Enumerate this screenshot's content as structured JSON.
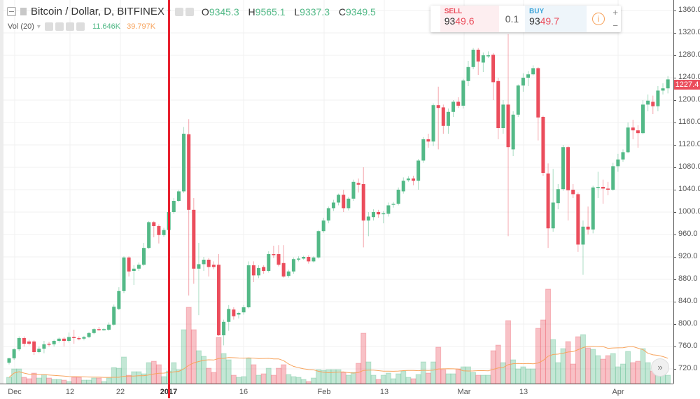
{
  "header": {
    "symbol_title": "Bitcoin / Dollar, D, BITFINEX",
    "ohlc": [
      {
        "label": "O",
        "value": "9345.3"
      },
      {
        "label": "H",
        "value": "9565.1"
      },
      {
        "label": "L",
        "value": "9337.3"
      },
      {
        "label": "C",
        "value": "9349.5"
      }
    ],
    "volume_indicator": {
      "label": "Vol (20)",
      "volume": "11.646K",
      "ma": "39.797K"
    }
  },
  "trade_widget": {
    "sell_label": "SELL",
    "sell_price_head": "93",
    "sell_price_tail": "49.6",
    "quantity": "0.1",
    "buy_label": "BUY",
    "buy_price_head": "93",
    "buy_price_tail": "49.7",
    "info_icon": "i",
    "plus": "+",
    "minus": "−"
  },
  "price_axis": {
    "ticks": [
      "1360.0",
      "1320.0",
      "1280.0",
      "1240.0",
      "1200.0",
      "1160.0",
      "1120.0",
      "1080.0",
      "1040.0",
      "1000.0",
      "960.0",
      "920.0",
      "880.0",
      "840.0",
      "800.0",
      "760.0",
      "720.0"
    ],
    "current_price": "1227.4"
  },
  "time_axis": {
    "labels": [
      "Dec",
      "12",
      "22",
      "2017",
      "16",
      "Feb",
      "13",
      "Mar",
      "13",
      "Apr"
    ]
  },
  "scroll_button": "»",
  "colors": {
    "up": "#53b987",
    "down": "#eb4d5c",
    "volume_ma": "#f7a35c",
    "marker_line": "#e8202e"
  },
  "chart_data": {
    "type": "candlestick",
    "interval": "D",
    "ylim": [
      700,
      1370
    ],
    "fields": [
      "open",
      "high",
      "low",
      "close"
    ],
    "candles": [
      [
        731,
        740,
        728,
        739
      ],
      [
        739,
        757,
        736,
        755
      ],
      [
        755,
        778,
        752,
        775
      ],
      [
        775,
        778,
        760,
        765
      ],
      [
        769,
        772,
        762,
        765
      ],
      [
        769,
        771,
        745,
        750
      ],
      [
        750,
        760,
        748,
        756
      ],
      [
        756,
        770,
        748,
        764
      ],
      [
        765,
        768,
        760,
        764
      ],
      [
        764,
        772,
        760,
        770
      ],
      [
        770,
        776,
        767,
        774
      ],
      [
        774,
        777,
        760,
        770
      ],
      [
        770,
        785,
        767,
        777
      ],
      [
        777,
        790,
        765,
        775
      ],
      [
        775,
        778,
        771,
        774
      ],
      [
        774,
        779,
        771,
        777
      ],
      [
        777,
        786,
        775,
        784
      ],
      [
        784,
        793,
        782,
        791
      ],
      [
        791,
        795,
        788,
        790
      ],
      [
        790,
        793,
        788,
        791
      ],
      [
        790,
        803,
        788,
        799
      ],
      [
        799,
        835,
        797,
        831
      ],
      [
        827,
        866,
        825,
        859
      ],
      [
        859,
        921,
        855,
        919
      ],
      [
        919,
        921,
        885,
        894
      ],
      [
        895,
        905,
        870,
        899
      ],
      [
        899,
        910,
        895,
        906
      ],
      [
        906,
        945,
        904,
        936
      ],
      [
        936,
        984,
        934,
        982
      ],
      [
        982,
        984,
        955,
        975
      ],
      [
        975,
        978,
        944,
        959
      ],
      [
        959,
        972,
        956,
        968
      ],
      [
        968,
        1005,
        966,
        1000
      ],
      [
        1000,
        1025,
        997,
        1020
      ],
      [
        1020,
        1040,
        1018,
        1037
      ],
      [
        1037,
        1152,
        1034,
        1140
      ],
      [
        1139,
        1166,
        851,
        1004
      ],
      [
        1004,
        1025,
        872,
        899
      ],
      [
        899,
        945,
        816,
        907
      ],
      [
        907,
        920,
        895,
        915
      ],
      [
        915,
        918,
        885,
        902
      ],
      [
        906,
        912,
        898,
        902
      ],
      [
        906,
        925,
        779,
        780
      ],
      [
        780,
        808,
        762,
        804
      ],
      [
        804,
        834,
        788,
        827
      ],
      [
        826,
        830,
        808,
        814
      ],
      [
        817,
        822,
        810,
        820
      ],
      [
        821,
        834,
        817,
        830
      ],
      [
        830,
        912,
        828,
        905
      ],
      [
        905,
        912,
        875,
        887
      ],
      [
        887,
        905,
        882,
        900
      ],
      [
        902,
        905,
        890,
        895
      ],
      [
        895,
        930,
        892,
        925
      ],
      [
        925,
        940,
        918,
        924
      ],
      [
        925,
        941,
        903,
        906
      ],
      [
        909,
        941,
        883,
        885
      ],
      [
        886,
        897,
        883,
        894
      ],
      [
        894,
        919,
        890,
        916
      ],
      [
        916,
        921,
        912,
        917
      ],
      [
        917,
        922,
        915,
        920
      ],
      [
        920,
        923,
        908,
        912
      ],
      [
        912,
        921,
        910,
        919
      ],
      [
        919,
        968,
        917,
        966
      ],
      [
        966,
        990,
        963,
        985
      ],
      [
        985,
        1010,
        980,
        1007
      ],
      [
        1007,
        1022,
        1002,
        1017
      ],
      [
        1017,
        1033,
        1012,
        1031
      ],
      [
        1031,
        1040,
        1000,
        1007
      ],
      [
        1007,
        1027,
        1003,
        1024
      ],
      [
        1024,
        1058,
        1020,
        1054
      ],
      [
        1052,
        1060,
        1035,
        1049
      ],
      [
        1050,
        1080,
        937,
        985
      ],
      [
        985,
        1000,
        957,
        992
      ],
      [
        991,
        1005,
        985,
        1000
      ],
      [
        1000,
        1004,
        990,
        996
      ],
      [
        997,
        1002,
        980,
        998
      ],
      [
        997,
        1017,
        992,
        1012
      ],
      [
        1014,
        1018,
        1008,
        1015
      ],
      [
        1015,
        1044,
        1012,
        1040
      ],
      [
        1037,
        1062,
        1033,
        1056
      ],
      [
        1057,
        1064,
        1054,
        1060
      ],
      [
        1060,
        1065,
        1048,
        1056
      ],
      [
        1056,
        1095,
        1040,
        1092
      ],
      [
        1092,
        1134,
        1088,
        1130
      ],
      [
        1130,
        1140,
        1115,
        1126
      ],
      [
        1126,
        1194,
        1118,
        1191
      ],
      [
        1191,
        1224,
        1112,
        1186
      ],
      [
        1187,
        1192,
        1140,
        1154
      ],
      [
        1154,
        1185,
        1140,
        1179
      ],
      [
        1179,
        1200,
        1170,
        1197
      ],
      [
        1197,
        1205,
        1186,
        1190
      ],
      [
        1190,
        1238,
        1185,
        1235
      ],
      [
        1234,
        1270,
        1225,
        1259
      ],
      [
        1259,
        1293,
        1255,
        1290
      ],
      [
        1290,
        1293,
        1245,
        1269
      ],
      [
        1267,
        1285,
        1250,
        1280
      ],
      [
        1279,
        1287,
        1275,
        1280
      ],
      [
        1281,
        1284,
        1200,
        1232
      ],
      [
        1234,
        1240,
        1130,
        1150
      ],
      [
        1150,
        1200,
        1140,
        1192
      ],
      [
        1192,
        1318,
        957,
        1116
      ],
      [
        1112,
        1180,
        1100,
        1174
      ],
      [
        1174,
        1228,
        1170,
        1226
      ],
      [
        1226,
        1248,
        1215,
        1240
      ],
      [
        1240,
        1252,
        1225,
        1246
      ],
      [
        1246,
        1262,
        1244,
        1257
      ],
      [
        1257,
        1259,
        1128,
        1169
      ],
      [
        1170,
        1172,
        1065,
        1070
      ],
      [
        1069,
        1087,
        936,
        971
      ],
      [
        971,
        1077,
        965,
        1017
      ],
      [
        1016,
        1050,
        1005,
        1041
      ],
      [
        1041,
        1120,
        1038,
        1116
      ],
      [
        1116,
        1118,
        985,
        1039
      ],
      [
        1040,
        1050,
        1025,
        1032
      ],
      [
        1032,
        1035,
        929,
        942
      ],
      [
        942,
        985,
        888,
        974
      ],
      [
        974,
        1010,
        960,
        969
      ],
      [
        969,
        1047,
        962,
        1044
      ],
      [
        1044,
        1072,
        1025,
        1045
      ],
      [
        1045,
        1058,
        1015,
        1042
      ],
      [
        1042,
        1054,
        1030,
        1040
      ],
      [
        1040,
        1088,
        1038,
        1082
      ],
      [
        1082,
        1104,
        1072,
        1094
      ],
      [
        1094,
        1112,
        1090,
        1107
      ],
      [
        1107,
        1160,
        1105,
        1151
      ],
      [
        1151,
        1165,
        1130,
        1146
      ],
      [
        1146,
        1155,
        1115,
        1141
      ],
      [
        1141,
        1200,
        1139,
        1192
      ],
      [
        1192,
        1210,
        1180,
        1199
      ],
      [
        1197,
        1208,
        1175,
        1189
      ],
      [
        1189,
        1225,
        1180,
        1217
      ],
      [
        1217,
        1230,
        1210,
        1221
      ],
      [
        1221,
        1243,
        1212,
        1237
      ]
    ],
    "volume_unit": "K",
    "volume_ma_period": 20,
    "volumes": [
      9,
      21,
      21,
      9,
      7,
      15,
      8,
      13,
      8,
      6,
      6,
      5,
      3,
      9,
      9,
      5,
      5,
      8,
      8,
      3,
      8,
      23,
      22,
      38,
      12,
      17,
      17,
      14,
      30,
      32,
      27,
      10,
      18,
      30,
      20,
      77,
      109,
      77,
      47,
      39,
      22,
      16,
      66,
      43,
      34,
      12,
      9,
      10,
      36,
      27,
      12,
      14,
      22,
      12,
      22,
      27,
      13,
      10,
      9,
      6,
      3,
      8,
      20,
      19,
      20,
      20,
      20,
      16,
      12,
      16,
      29,
      72,
      31,
      12,
      6,
      12,
      15,
      7,
      14,
      18,
      9,
      7,
      13,
      31,
      15,
      31,
      52,
      20,
      14,
      14,
      21,
      24,
      24,
      16,
      12,
      12,
      12,
      47,
      55,
      30,
      90,
      34,
      21,
      24,
      21,
      21,
      79,
      91,
      135,
      63,
      30,
      50,
      60,
      28,
      67,
      70,
      51,
      49,
      40,
      35,
      40,
      43,
      24,
      28,
      46,
      30,
      32,
      50,
      30,
      18,
      18,
      14,
      12
    ]
  }
}
